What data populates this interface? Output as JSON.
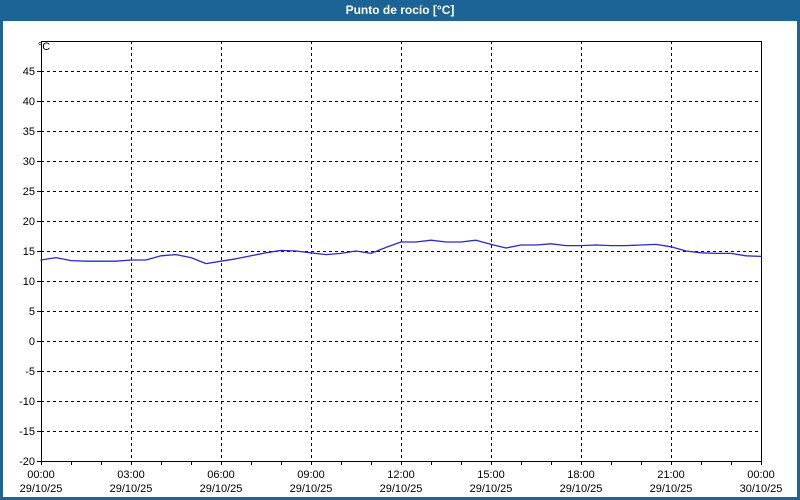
{
  "window": {
    "title": "Punto de rocío [°C]"
  },
  "colors": {
    "frame": "#1c6396",
    "title_text": "#ffffff",
    "plot_background": "#ffffff",
    "axis": "#000000",
    "grid": "#000000",
    "text": "#000000",
    "line": "#2929cc"
  },
  "chart_data": {
    "type": "line",
    "title": "Punto de rocío [°C]",
    "ylabel": "°C",
    "xlabel": "",
    "ylim": [
      -20,
      50
    ],
    "y_ticks": [
      -20,
      -15,
      -10,
      -5,
      0,
      5,
      10,
      15,
      20,
      25,
      30,
      35,
      40,
      45
    ],
    "x_hours": [
      0,
      24
    ],
    "x_major_step_hours": 3,
    "x_minor_step_hours": 1,
    "grid": "dashed",
    "legend_position": "none",
    "x_tick_labels": [
      {
        "time": "00:00",
        "date": "29/10/25"
      },
      {
        "time": "03:00",
        "date": "29/10/25"
      },
      {
        "time": "06:00",
        "date": "29/10/25"
      },
      {
        "time": "09:00",
        "date": "29/10/25"
      },
      {
        "time": "12:00",
        "date": "29/10/25"
      },
      {
        "time": "15:00",
        "date": "29/10/25"
      },
      {
        "time": "18:00",
        "date": "29/10/25"
      },
      {
        "time": "21:00",
        "date": "29/10/25"
      },
      {
        "time": "00:00",
        "date": "30/10/25"
      }
    ],
    "series": [
      {
        "name": "Punto de rocío",
        "unit": "°C",
        "color": "#2929cc",
        "start_hour": 0,
        "step_hours": 0.5,
        "values": [
          13.5,
          13.9,
          13.4,
          13.3,
          13.3,
          13.3,
          13.5,
          13.5,
          14.2,
          14.4,
          13.9,
          12.9,
          13.3,
          13.7,
          14.2,
          14.7,
          15.1,
          15.0,
          14.7,
          14.4,
          14.6,
          15.0,
          14.6,
          15.6,
          16.5,
          16.5,
          16.8,
          16.5,
          16.5,
          16.8,
          16.1,
          15.5,
          16.0,
          16.0,
          16.2,
          15.9,
          15.9,
          16.0,
          15.9,
          15.9,
          16.0,
          16.1,
          15.7,
          15.0,
          14.7,
          14.6,
          14.6,
          14.2,
          14.1
        ]
      }
    ]
  }
}
